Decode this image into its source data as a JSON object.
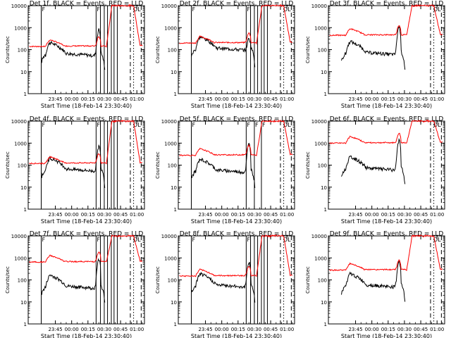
{
  "figure": {
    "background": "#ffffff",
    "ylabel": "Counts/sec",
    "xlabel": "Start Time (18-Feb-14 23:30:40)",
    "series_colors": {
      "Events": "#000000",
      "LLD": "#ff0000"
    }
  },
  "chart_data": [
    {
      "type": "line",
      "title": "Det 1f, BLACK = Events, RED = LLD",
      "xlabel": "Start Time (18-Feb-14 23:30:40)",
      "ylabel": "Counts/sec",
      "yscale": "log",
      "ylim": [
        1,
        10000
      ],
      "xlim_minutes": [
        -25,
        82
      ],
      "xticks": [
        "23:45",
        "00:00",
        "00:15",
        "00:30",
        "00:45",
        "01:00"
      ],
      "yticks": [
        "1",
        "10",
        "100",
        "1000",
        "10000"
      ],
      "solid_lines_minutes": [
        -13,
        37.5,
        41.5,
        45,
        48,
        51.5,
        54,
        57
      ],
      "dashed_lines_minutes": [
        69,
        79
      ],
      "dotted_lines_minutes": [
        72,
        82
      ],
      "annotations": [
        {
          "text": "F",
          "minute": -13
        },
        {
          "text": "F",
          "minute": 37.5
        },
        {
          "text": "DL",
          "minute": 71
        }
      ],
      "events_level": 45,
      "lld_level": 140,
      "events_peak": 800
    },
    {
      "type": "line",
      "title": "Det 2f, BLACK = Events, RED = LLD",
      "xlabel": "Start Time (18-Feb-14 23:30:40)",
      "ylabel": "Counts/sec",
      "yscale": "log",
      "ylim": [
        1,
        10000
      ],
      "xlim_minutes": [
        -25,
        82
      ],
      "xticks": [
        "23:45",
        "00:00",
        "00:15",
        "00:30",
        "00:45",
        "01:00"
      ],
      "yticks": [
        "1",
        "10",
        "100",
        "1000",
        "10000"
      ],
      "solid_lines_minutes": [
        -13,
        37.5,
        41.5,
        45,
        48,
        51.5,
        54,
        57
      ],
      "dashed_lines_minutes": [
        69,
        79
      ],
      "dotted_lines_minutes": [
        72,
        82
      ],
      "annotations": [
        {
          "text": "F",
          "minute": -13
        },
        {
          "text": "F",
          "minute": 37.5
        },
        {
          "text": "DL",
          "minute": 71
        }
      ],
      "events_level": 80,
      "lld_level": 200,
      "events_peak": 300
    },
    {
      "type": "line",
      "title": "Det 3f, BLACK = Events, RED = LLD",
      "xlabel": "Start Time (18-Feb-14 23:30:40)",
      "ylabel": "Counts/sec",
      "yscale": "log",
      "ylim": [
        1,
        10000
      ],
      "xlim_minutes": [
        -25,
        82
      ],
      "xticks": [
        "23:45",
        "00:00",
        "00:15",
        "00:30",
        "00:45",
        "01:00"
      ],
      "yticks": [
        "1",
        "10",
        "100",
        "1000",
        "10000"
      ],
      "solid_lines_minutes": [],
      "dashed_lines_minutes": [
        69,
        79
      ],
      "dotted_lines_minutes": [
        72,
        82
      ],
      "annotations": [
        {
          "text": "DL",
          "minute": 71
        }
      ],
      "events_level": 50,
      "lld_level": 450,
      "events_peak": 1100
    },
    {
      "type": "line",
      "title": "Det 4f, BLACK = Events, RED = LLD",
      "xlabel": "Start Time (18-Feb-14 23:30:40)",
      "ylabel": "Counts/sec",
      "yscale": "log",
      "ylim": [
        1,
        10000
      ],
      "xlim_minutes": [
        -25,
        82
      ],
      "xticks": [
        "23:45",
        "00:00",
        "00:15",
        "00:30",
        "00:45",
        "01:00"
      ],
      "yticks": [
        "1",
        "10",
        "100",
        "1000",
        "10000"
      ],
      "solid_lines_minutes": [
        -13,
        37.5,
        41.5,
        45,
        48,
        51.5,
        54,
        57
      ],
      "dashed_lines_minutes": [
        69,
        79
      ],
      "dotted_lines_minutes": [
        72,
        82
      ],
      "annotations": [
        {
          "text": "F",
          "minute": -13
        },
        {
          "text": "F",
          "minute": 37.5
        },
        {
          "text": "DL",
          "minute": 71
        }
      ],
      "events_level": 45,
      "lld_level": 120,
      "events_peak": 700
    },
    {
      "type": "line",
      "title": "Det 5f, BLACK = Events, RED = LLD",
      "xlabel": "Start Time (18-Feb-14 23:30:40)",
      "ylabel": "Counts/sec",
      "yscale": "log",
      "ylim": [
        1,
        10000
      ],
      "xlim_minutes": [
        -25,
        82
      ],
      "xticks": [
        "23:45",
        "00:00",
        "00:15",
        "00:30",
        "00:45",
        "01:00"
      ],
      "yticks": [
        "1",
        "10",
        "100",
        "1000",
        "10000"
      ],
      "solid_lines_minutes": [
        -13,
        37.5,
        45,
        51.5
      ],
      "dashed_lines_minutes": [
        69,
        79
      ],
      "dotted_lines_minutes": [
        72,
        82
      ],
      "annotations": [
        {
          "text": "F",
          "minute": -13
        },
        {
          "text": "F",
          "minute": 37.5
        },
        {
          "text": "F",
          "minute": 45
        },
        {
          "text": "F",
          "minute": 51.5
        },
        {
          "text": "DL",
          "minute": 71
        }
      ],
      "events_level": 40,
      "lld_level": 280,
      "events_peak": 900
    },
    {
      "type": "line",
      "title": "Det 6f, BLACK = Events, RED = LLD",
      "xlabel": "Start Time (18-Feb-14 23:30:40)",
      "ylabel": "Counts/sec",
      "yscale": "log",
      "ylim": [
        1,
        10000
      ],
      "xlim_minutes": [
        -25,
        82
      ],
      "xticks": [
        "23:45",
        "00:00",
        "00:15",
        "00:30",
        "00:45",
        "01:00"
      ],
      "yticks": [
        "1",
        "10",
        "100",
        "1000",
        "10000"
      ],
      "solid_lines_minutes": [],
      "dashed_lines_minutes": [
        69,
        79
      ],
      "dotted_lines_minutes": [
        72,
        82
      ],
      "annotations": [
        {
          "text": "DL",
          "minute": 71
        }
      ],
      "events_level": 50,
      "lld_level": 1000,
      "events_peak": 1300
    },
    {
      "type": "line",
      "title": "Det 7f, BLACK = Events, RED = LLD",
      "xlabel": "Start Time (18-Feb-14 23:30:40)",
      "ylabel": "Counts/sec",
      "yscale": "log",
      "ylim": [
        1,
        10000
      ],
      "xlim_minutes": [
        -25,
        82
      ],
      "xticks": [
        "23:45",
        "00:00",
        "00:15",
        "00:30",
        "00:45",
        "01:00"
      ],
      "yticks": [
        "1",
        "10",
        "100",
        "1000",
        "10000"
      ],
      "solid_lines_minutes": [
        -13,
        37.5,
        41.5,
        45,
        48,
        51.5,
        54,
        57
      ],
      "dashed_lines_minutes": [
        69,
        79
      ],
      "dotted_lines_minutes": [
        72,
        82
      ],
      "annotations": [
        {
          "text": "F",
          "minute": -13
        },
        {
          "text": "F",
          "minute": 37.5
        },
        {
          "text": "DL",
          "minute": 71
        }
      ],
      "events_level": 35,
      "lld_level": 650,
      "events_peak": 900
    },
    {
      "type": "line",
      "title": "Det 8f, BLACK = Events, RED = LLD",
      "xlabel": "Start Time (18-Feb-14 23:30:40)",
      "ylabel": "Counts/sec",
      "yscale": "log",
      "ylim": [
        1,
        10000
      ],
      "xlim_minutes": [
        -25,
        82
      ],
      "xticks": [
        "23:45",
        "00:00",
        "00:15",
        "00:30",
        "00:45",
        "01:00"
      ],
      "yticks": [
        "1",
        "10",
        "100",
        "1000",
        "10000"
      ],
      "solid_lines_minutes": [
        -13,
        37.5,
        41.5,
        45,
        48,
        51.5,
        54,
        57
      ],
      "dashed_lines_minutes": [
        69,
        79
      ],
      "dotted_lines_minutes": [
        72,
        82
      ],
      "annotations": [
        {
          "text": "F",
          "minute": -13
        },
        {
          "text": "F",
          "minute": 37.5
        },
        {
          "text": "DL",
          "minute": 71
        }
      ],
      "events_level": 40,
      "lld_level": 150,
      "events_peak": 600
    },
    {
      "type": "line",
      "title": "Det 9f, BLACK = Events, RED = LLD",
      "xlabel": "Start Time (18-Feb-14 23:30:40)",
      "ylabel": "Counts/sec",
      "yscale": "log",
      "ylim": [
        1,
        10000
      ],
      "xlim_minutes": [
        -25,
        82
      ],
      "xticks": [
        "23:45",
        "00:00",
        "00:15",
        "00:30",
        "00:45",
        "01:00"
      ],
      "yticks": [
        "1",
        "10",
        "100",
        "1000",
        "10000"
      ],
      "solid_lines_minutes": [],
      "dashed_lines_minutes": [
        69,
        79
      ],
      "dotted_lines_minutes": [
        72,
        82
      ],
      "annotations": [
        {
          "text": "DL",
          "minute": 71
        }
      ],
      "events_level": 40,
      "lld_level": 280,
      "events_peak": 700
    }
  ]
}
